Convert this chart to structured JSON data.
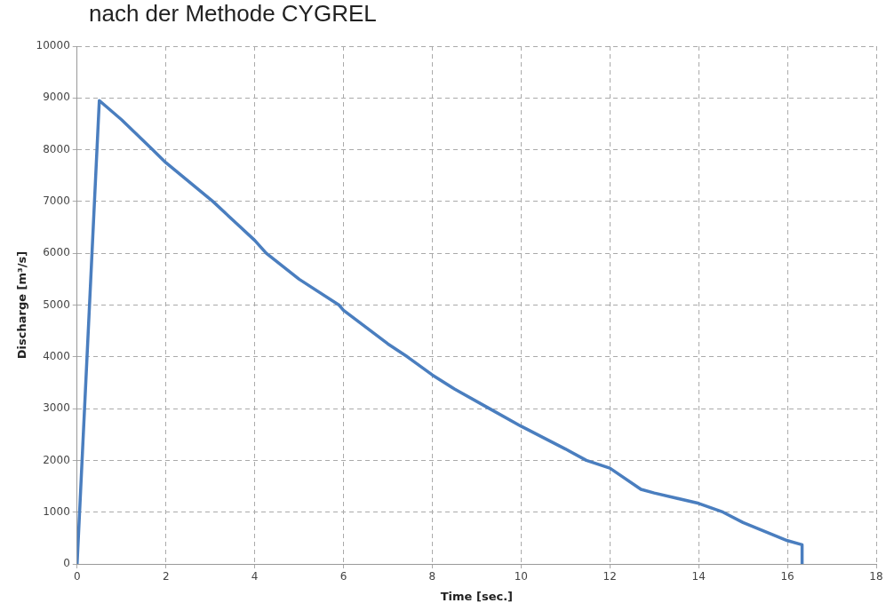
{
  "chart_data": {
    "type": "line",
    "title": "nach der Methode CYGREL",
    "xlabel": "Time [sec.]",
    "ylabel": "Discharge [m³/s]",
    "series": [
      {
        "color": "#4a7ebf",
        "x": [
          0,
          0.5,
          1,
          1.7,
          2,
          3.06,
          4,
          4.26,
          5,
          5.9,
          6,
          7,
          7.44,
          8,
          8.5,
          9.29,
          10,
          11,
          11.47,
          12,
          12.7,
          13,
          14,
          14.55,
          15,
          16,
          16.33,
          16.33
        ],
        "values": [
          0,
          8950,
          8580,
          8000,
          7750,
          7000,
          6250,
          6000,
          5500,
          5000,
          4900,
          4250,
          4000,
          3650,
          3380,
          3000,
          2660,
          2220,
          2000,
          1850,
          1440,
          1370,
          1170,
          1000,
          800,
          450,
          370,
          0
        ]
      }
    ],
    "xlim": [
      0,
      18
    ],
    "xticks": [
      0,
      2,
      4,
      6,
      8,
      10,
      12,
      14,
      16,
      18
    ],
    "ylim": [
      0,
      10000
    ],
    "yticks": [
      0,
      1000,
      2000,
      3000,
      4000,
      5000,
      6000,
      7000,
      8000,
      9000,
      10000
    ],
    "grid": true,
    "legend": false,
    "marker": "none",
    "line_style": "solid"
  }
}
